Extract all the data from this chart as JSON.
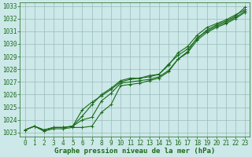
{
  "title": "Graphe pression niveau de la mer (hPa)",
  "background_color": "#cce8e8",
  "plot_bg_color": "#cce8e8",
  "grid_color": "#99bbbb",
  "line_color": "#1a6b1a",
  "ylim": [
    1022.7,
    1033.3
  ],
  "xlim": [
    -0.5,
    23.5
  ],
  "yticks": [
    1023,
    1024,
    1025,
    1026,
    1027,
    1028,
    1029,
    1030,
    1031,
    1032,
    1033
  ],
  "xticks": [
    0,
    1,
    2,
    3,
    4,
    5,
    6,
    7,
    8,
    9,
    10,
    11,
    12,
    13,
    14,
    15,
    16,
    17,
    18,
    19,
    20,
    21,
    22,
    23
  ],
  "series": [
    [
      1023.2,
      1023.5,
      1023.2,
      1023.4,
      1023.4,
      1023.5,
      1024.8,
      1025.4,
      1025.9,
      1026.4,
      1027.0,
      1027.2,
      1027.3,
      1027.5,
      1027.6,
      1028.4,
      1029.1,
      1029.6,
      1030.4,
      1031.1,
      1031.5,
      1031.8,
      1032.2,
      1032.9
    ],
    [
      1023.2,
      1023.5,
      1023.2,
      1023.4,
      1023.4,
      1023.5,
      1024.3,
      1025.2,
      1026.0,
      1026.5,
      1027.1,
      1027.3,
      1027.3,
      1027.4,
      1027.6,
      1028.3,
      1029.3,
      1029.8,
      1030.7,
      1031.3,
      1031.6,
      1031.9,
      1032.3,
      1032.7
    ],
    [
      1023.2,
      1023.5,
      1023.2,
      1023.4,
      1023.4,
      1023.5,
      1024.0,
      1024.2,
      1025.5,
      1026.1,
      1026.9,
      1027.0,
      1027.1,
      1027.2,
      1027.4,
      1027.9,
      1028.8,
      1029.4,
      1030.5,
      1031.0,
      1031.4,
      1031.7,
      1032.1,
      1032.6
    ],
    [
      1023.2,
      1023.5,
      1023.1,
      1023.3,
      1023.3,
      1023.4,
      1023.4,
      1023.5,
      1024.6,
      1025.2,
      1026.7,
      1026.8,
      1026.9,
      1027.1,
      1027.3,
      1027.8,
      1028.8,
      1029.3,
      1030.3,
      1030.9,
      1031.3,
      1031.6,
      1032.0,
      1032.5
    ]
  ],
  "marker": "+",
  "markersize": 3.5,
  "linewidth": 0.8,
  "title_fontsize": 6.5,
  "tick_fontsize": 5.5
}
